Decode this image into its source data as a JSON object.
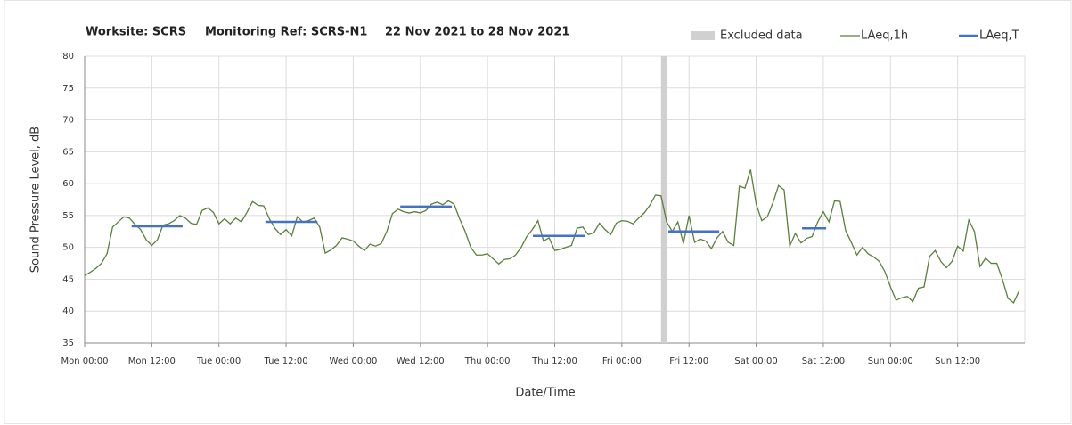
{
  "chart_data": {
    "type": "line",
    "title_parts": [
      "Worksite: SCRS",
      "Monitoring Ref: SCRS-N1",
      "22 Nov 2021 to 28 Nov 2021"
    ],
    "x_label": "Date/Time",
    "y_label": "Sound Pressure Level, dB",
    "xlim": [
      0,
      168
    ],
    "xticks": [
      {
        "value": 0,
        "label": "Mon 00:00"
      },
      {
        "value": 12,
        "label": "Mon 12:00"
      },
      {
        "value": 24,
        "label": "Tue 00:00"
      },
      {
        "value": 36,
        "label": "Tue 12:00"
      },
      {
        "value": 48,
        "label": "Wed 00:00"
      },
      {
        "value": 60,
        "label": "Wed 12:00"
      },
      {
        "value": 72,
        "label": "Thu 00:00"
      },
      {
        "value": 84,
        "label": "Thu 12:00"
      },
      {
        "value": 96,
        "label": "Fri 00:00"
      },
      {
        "value": 108,
        "label": "Fri 12:00"
      },
      {
        "value": 120,
        "label": "Sat 00:00"
      },
      {
        "value": 132,
        "label": "Sat 12:00"
      },
      {
        "value": 144,
        "label": "Sun 00:00"
      },
      {
        "value": 156,
        "label": "Sun 12:00"
      }
    ],
    "ylim": [
      35,
      80
    ],
    "yticks": [
      35,
      40,
      45,
      50,
      55,
      60,
      65,
      70,
      75,
      80
    ],
    "grid": true,
    "legend": "top-right",
    "excluded": {
      "name": "Excluded data",
      "color": "#d0d0d0",
      "ranges": [
        [
          103,
          104
        ]
      ]
    },
    "series": [
      {
        "name": "LAeq,1h",
        "color": "#5b7f3b",
        "values": [
          45.6,
          46.1,
          46.7,
          47.5,
          49.0,
          53.2,
          54.0,
          54.8,
          54.6,
          53.6,
          52.8,
          51.2,
          50.3,
          51.2,
          53.5,
          53.7,
          54.2,
          55.0,
          54.6,
          53.8,
          53.6,
          55.8,
          56.2,
          55.5,
          53.7,
          54.5,
          53.7,
          54.6,
          54.0,
          55.5,
          57.2,
          56.6,
          56.5,
          54.5,
          53.0,
          52.0,
          52.8,
          51.8,
          54.8,
          54.0,
          54.2,
          54.6,
          53.2,
          49.1,
          49.6,
          50.3,
          51.5,
          51.3,
          51.0,
          50.2,
          49.5,
          50.5,
          50.2,
          50.6,
          52.5,
          55.3,
          56.0,
          55.6,
          55.4,
          55.6,
          55.4,
          55.8,
          56.8,
          57.1,
          56.7,
          57.3,
          56.8,
          54.5,
          52.5,
          50.0,
          48.8,
          48.8,
          49.0,
          48.2,
          47.4,
          48.1,
          48.2,
          48.8,
          50.0,
          51.7,
          52.8,
          54.2,
          51.0,
          51.5,
          49.5,
          49.7,
          50.0,
          50.3,
          53.0,
          53.2,
          52.0,
          52.3,
          53.8,
          52.8,
          52.0,
          53.8,
          54.2,
          54.1,
          53.7,
          54.6,
          55.4,
          56.6,
          58.2,
          58.1,
          54.0,
          52.5,
          54.0,
          50.6,
          55.0,
          50.8,
          51.3,
          51.0,
          49.8,
          51.5,
          52.5,
          50.8,
          50.3,
          59.6,
          59.3,
          62.2,
          56.8,
          54.2,
          54.8,
          57.0,
          59.7,
          59.0,
          50.2,
          52.2,
          50.7,
          51.4,
          51.7,
          54.0,
          55.6,
          54.0,
          57.3,
          57.2,
          52.6,
          50.8,
          48.8,
          50.0,
          49.0,
          48.5,
          47.8,
          46.2,
          43.8,
          41.7,
          42.1,
          42.3,
          41.5,
          43.6,
          43.8,
          48.6,
          49.5,
          47.8,
          46.8,
          47.8,
          50.2,
          49.4,
          54.3,
          52.5,
          47.0,
          48.3,
          47.5,
          47.5,
          45.0,
          42.0,
          41.3,
          43.2
        ]
      },
      {
        "name": "LAeq,T",
        "color": "#4472c4",
        "segments": [
          {
            "start": 8.4,
            "end": 17.5,
            "value": 53.3
          },
          {
            "start": 32.3,
            "end": 41.6,
            "value": 54.0
          },
          {
            "start": 56.4,
            "end": 65.6,
            "value": 56.4
          },
          {
            "start": 80.1,
            "end": 89.5,
            "value": 51.8
          },
          {
            "start": 104.3,
            "end": 113.4,
            "value": 52.5
          },
          {
            "start": 128.2,
            "end": 132.5,
            "value": 53.0
          }
        ]
      }
    ]
  }
}
